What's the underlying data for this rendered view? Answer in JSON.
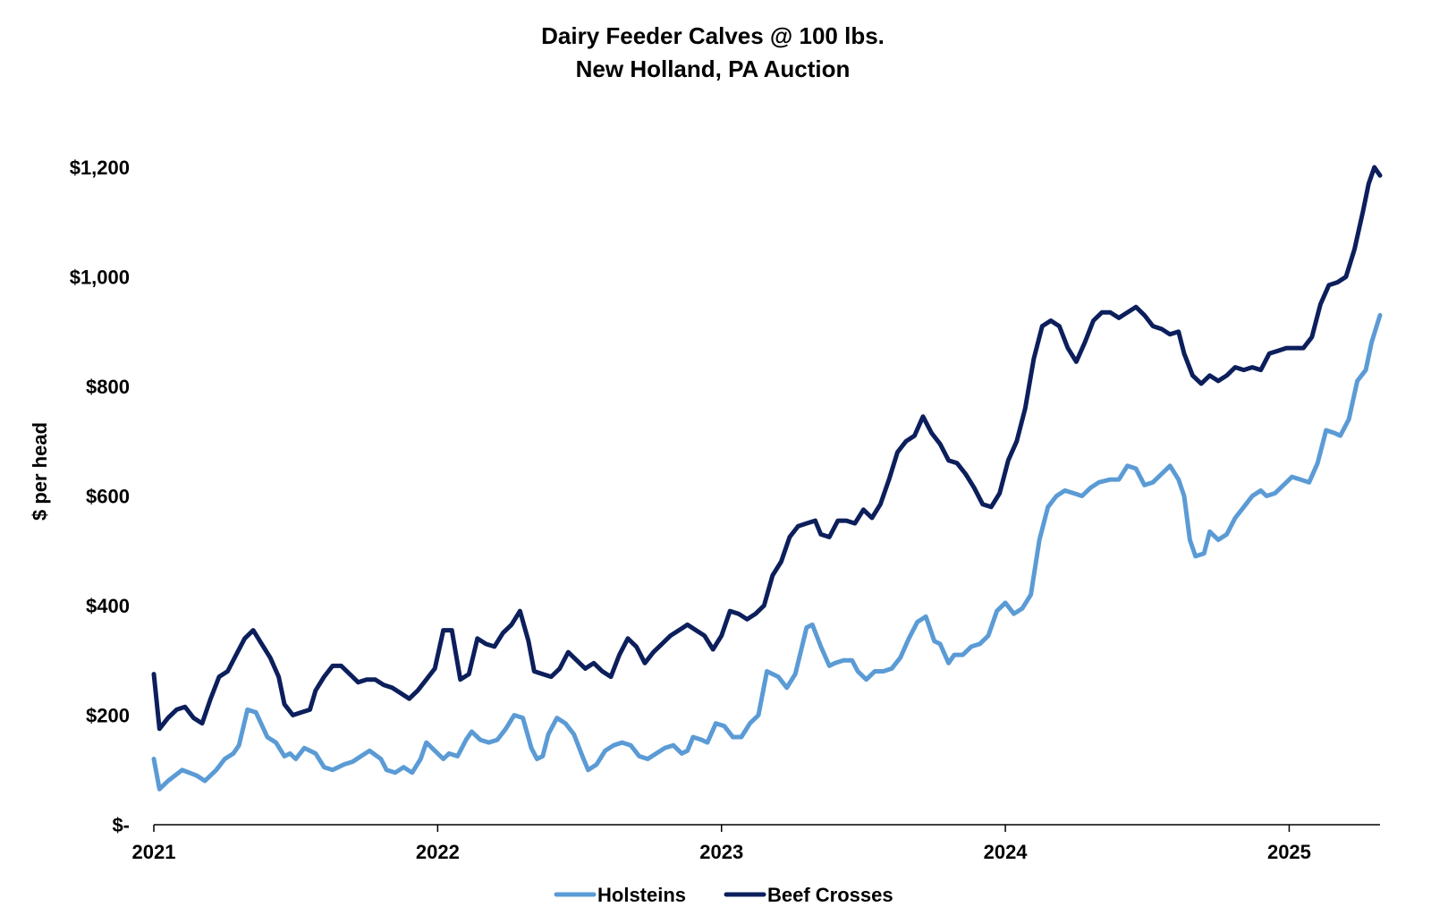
{
  "chart_data": {
    "type": "line",
    "title": "Dairy Feeder Calves @ 100 lbs.",
    "subtitle": "New Holland, PA Auction",
    "xlabel": "",
    "ylabel": "$ per head",
    "xlim": [
      2021.0,
      2025.32
    ],
    "ylim": [
      0,
      1200
    ],
    "y_ticks": [
      0,
      200,
      400,
      600,
      800,
      1000,
      1200
    ],
    "y_tick_labels": [
      "$-",
      "$200",
      "$400",
      "$600",
      "$800",
      "$1,000",
      "$1,200"
    ],
    "x_ticks": [
      2021,
      2022,
      2023,
      2024,
      2025
    ],
    "x_tick_labels": [
      "2021",
      "2022",
      "2023",
      "2024",
      "2025"
    ],
    "grid": false,
    "legend_position": "bottom",
    "series": [
      {
        "name": "Holsteins",
        "color": "#5b9bd5",
        "points": [
          [
            2021.0,
            120
          ],
          [
            2021.02,
            65
          ],
          [
            2021.05,
            80
          ],
          [
            2021.1,
            100
          ],
          [
            2021.15,
            90
          ],
          [
            2021.18,
            80
          ],
          [
            2021.22,
            100
          ],
          [
            2021.25,
            120
          ],
          [
            2021.28,
            130
          ],
          [
            2021.3,
            145
          ],
          [
            2021.33,
            210
          ],
          [
            2021.36,
            205
          ],
          [
            2021.4,
            160
          ],
          [
            2021.43,
            150
          ],
          [
            2021.46,
            125
          ],
          [
            2021.48,
            130
          ],
          [
            2021.5,
            120
          ],
          [
            2021.53,
            140
          ],
          [
            2021.57,
            130
          ],
          [
            2021.6,
            105
          ],
          [
            2021.63,
            100
          ],
          [
            2021.67,
            110
          ],
          [
            2021.7,
            115
          ],
          [
            2021.73,
            125
          ],
          [
            2021.76,
            135
          ],
          [
            2021.8,
            120
          ],
          [
            2021.82,
            100
          ],
          [
            2021.85,
            95
          ],
          [
            2021.88,
            105
          ],
          [
            2021.91,
            95
          ],
          [
            2021.94,
            120
          ],
          [
            2021.96,
            150
          ],
          [
            2021.99,
            135
          ],
          [
            2022.02,
            120
          ],
          [
            2022.04,
            130
          ],
          [
            2022.07,
            125
          ],
          [
            2022.1,
            155
          ],
          [
            2022.12,
            170
          ],
          [
            2022.15,
            155
          ],
          [
            2022.18,
            150
          ],
          [
            2022.21,
            155
          ],
          [
            2022.24,
            175
          ],
          [
            2022.27,
            200
          ],
          [
            2022.3,
            195
          ],
          [
            2022.33,
            140
          ],
          [
            2022.35,
            120
          ],
          [
            2022.37,
            125
          ],
          [
            2022.39,
            165
          ],
          [
            2022.42,
            195
          ],
          [
            2022.45,
            185
          ],
          [
            2022.48,
            165
          ],
          [
            2022.51,
            125
          ],
          [
            2022.53,
            100
          ],
          [
            2022.56,
            110
          ],
          [
            2022.59,
            135
          ],
          [
            2022.62,
            145
          ],
          [
            2022.65,
            150
          ],
          [
            2022.68,
            145
          ],
          [
            2022.71,
            125
          ],
          [
            2022.74,
            120
          ],
          [
            2022.77,
            130
          ],
          [
            2022.8,
            140
          ],
          [
            2022.83,
            145
          ],
          [
            2022.86,
            130
          ],
          [
            2022.88,
            135
          ],
          [
            2022.9,
            160
          ],
          [
            2022.93,
            155
          ],
          [
            2022.95,
            150
          ],
          [
            2022.98,
            185
          ],
          [
            2023.01,
            180
          ],
          [
            2023.04,
            160
          ],
          [
            2023.07,
            160
          ],
          [
            2023.1,
            185
          ],
          [
            2023.13,
            200
          ],
          [
            2023.16,
            280
          ],
          [
            2023.2,
            270
          ],
          [
            2023.23,
            250
          ],
          [
            2023.26,
            275
          ],
          [
            2023.3,
            360
          ],
          [
            2023.32,
            365
          ],
          [
            2023.35,
            325
          ],
          [
            2023.38,
            290
          ],
          [
            2023.4,
            295
          ],
          [
            2023.43,
            300
          ],
          [
            2023.46,
            300
          ],
          [
            2023.48,
            280
          ],
          [
            2023.51,
            265
          ],
          [
            2023.54,
            280
          ],
          [
            2023.57,
            280
          ],
          [
            2023.6,
            285
          ],
          [
            2023.63,
            305
          ],
          [
            2023.66,
            340
          ],
          [
            2023.69,
            370
          ],
          [
            2023.72,
            380
          ],
          [
            2023.75,
            335
          ],
          [
            2023.77,
            330
          ],
          [
            2023.8,
            295
          ],
          [
            2023.82,
            310
          ],
          [
            2023.85,
            310
          ],
          [
            2023.88,
            325
          ],
          [
            2023.91,
            330
          ],
          [
            2023.94,
            345
          ],
          [
            2023.97,
            390
          ],
          [
            2024.0,
            405
          ],
          [
            2024.03,
            385
          ],
          [
            2024.06,
            395
          ],
          [
            2024.09,
            420
          ],
          [
            2024.12,
            520
          ],
          [
            2024.15,
            580
          ],
          [
            2024.18,
            600
          ],
          [
            2024.21,
            610
          ],
          [
            2024.24,
            605
          ],
          [
            2024.27,
            600
          ],
          [
            2024.3,
            615
          ],
          [
            2024.33,
            625
          ],
          [
            2024.37,
            630
          ],
          [
            2024.4,
            630
          ],
          [
            2024.43,
            655
          ],
          [
            2024.46,
            650
          ],
          [
            2024.49,
            620
          ],
          [
            2024.52,
            625
          ],
          [
            2024.55,
            640
          ],
          [
            2024.58,
            655
          ],
          [
            2024.61,
            630
          ],
          [
            2024.63,
            600
          ],
          [
            2024.65,
            520
          ],
          [
            2024.67,
            490
          ],
          [
            2024.7,
            495
          ],
          [
            2024.72,
            535
          ],
          [
            2024.75,
            520
          ],
          [
            2024.78,
            530
          ],
          [
            2024.81,
            560
          ],
          [
            2024.84,
            580
          ],
          [
            2024.87,
            600
          ],
          [
            2024.9,
            610
          ],
          [
            2024.92,
            600
          ],
          [
            2024.95,
            605
          ],
          [
            2024.98,
            620
          ],
          [
            2025.01,
            635
          ],
          [
            2025.04,
            630
          ],
          [
            2025.07,
            625
          ],
          [
            2025.1,
            660
          ],
          [
            2025.13,
            720
          ],
          [
            2025.16,
            715
          ],
          [
            2025.18,
            710
          ],
          [
            2025.21,
            740
          ],
          [
            2025.24,
            810
          ],
          [
            2025.27,
            830
          ],
          [
            2025.29,
            880
          ],
          [
            2025.32,
            930
          ]
        ]
      },
      {
        "name": "Beef Crosses",
        "color": "#0c1f5c",
        "points": [
          [
            2021.0,
            275
          ],
          [
            2021.02,
            175
          ],
          [
            2021.05,
            195
          ],
          [
            2021.08,
            210
          ],
          [
            2021.11,
            215
          ],
          [
            2021.14,
            195
          ],
          [
            2021.17,
            185
          ],
          [
            2021.2,
            230
          ],
          [
            2021.23,
            270
          ],
          [
            2021.26,
            280
          ],
          [
            2021.29,
            310
          ],
          [
            2021.32,
            340
          ],
          [
            2021.35,
            355
          ],
          [
            2021.38,
            330
          ],
          [
            2021.41,
            305
          ],
          [
            2021.44,
            270
          ],
          [
            2021.46,
            220
          ],
          [
            2021.49,
            200
          ],
          [
            2021.52,
            205
          ],
          [
            2021.55,
            210
          ],
          [
            2021.57,
            245
          ],
          [
            2021.6,
            270
          ],
          [
            2021.63,
            290
          ],
          [
            2021.66,
            290
          ],
          [
            2021.69,
            275
          ],
          [
            2021.72,
            260
          ],
          [
            2021.75,
            265
          ],
          [
            2021.78,
            265
          ],
          [
            2021.81,
            255
          ],
          [
            2021.84,
            250
          ],
          [
            2021.87,
            240
          ],
          [
            2021.9,
            230
          ],
          [
            2021.93,
            245
          ],
          [
            2021.96,
            265
          ],
          [
            2021.99,
            285
          ],
          [
            2022.02,
            355
          ],
          [
            2022.05,
            355
          ],
          [
            2022.08,
            265
          ],
          [
            2022.11,
            275
          ],
          [
            2022.14,
            340
          ],
          [
            2022.17,
            330
          ],
          [
            2022.2,
            325
          ],
          [
            2022.23,
            350
          ],
          [
            2022.26,
            365
          ],
          [
            2022.29,
            390
          ],
          [
            2022.32,
            335
          ],
          [
            2022.34,
            280
          ],
          [
            2022.37,
            275
          ],
          [
            2022.4,
            270
          ],
          [
            2022.43,
            285
          ],
          [
            2022.46,
            315
          ],
          [
            2022.49,
            300
          ],
          [
            2022.52,
            285
          ],
          [
            2022.55,
            295
          ],
          [
            2022.58,
            280
          ],
          [
            2022.61,
            270
          ],
          [
            2022.64,
            310
          ],
          [
            2022.67,
            340
          ],
          [
            2022.7,
            325
          ],
          [
            2022.73,
            295
          ],
          [
            2022.76,
            315
          ],
          [
            2022.79,
            330
          ],
          [
            2022.82,
            345
          ],
          [
            2022.85,
            355
          ],
          [
            2022.88,
            365
          ],
          [
            2022.91,
            355
          ],
          [
            2022.94,
            345
          ],
          [
            2022.97,
            320
          ],
          [
            2023.0,
            345
          ],
          [
            2023.03,
            390
          ],
          [
            2023.06,
            385
          ],
          [
            2023.09,
            375
          ],
          [
            2023.12,
            385
          ],
          [
            2023.15,
            400
          ],
          [
            2023.18,
            455
          ],
          [
            2023.21,
            480
          ],
          [
            2023.24,
            525
          ],
          [
            2023.27,
            545
          ],
          [
            2023.3,
            550
          ],
          [
            2023.33,
            555
          ],
          [
            2023.35,
            530
          ],
          [
            2023.38,
            525
          ],
          [
            2023.41,
            555
          ],
          [
            2023.44,
            555
          ],
          [
            2023.47,
            550
          ],
          [
            2023.5,
            575
          ],
          [
            2023.53,
            560
          ],
          [
            2023.56,
            585
          ],
          [
            2023.59,
            630
          ],
          [
            2023.62,
            680
          ],
          [
            2023.65,
            700
          ],
          [
            2023.68,
            710
          ],
          [
            2023.71,
            745
          ],
          [
            2023.74,
            715
          ],
          [
            2023.77,
            695
          ],
          [
            2023.8,
            665
          ],
          [
            2023.83,
            660
          ],
          [
            2023.86,
            640
          ],
          [
            2023.89,
            615
          ],
          [
            2023.92,
            585
          ],
          [
            2023.95,
            580
          ],
          [
            2023.98,
            605
          ],
          [
            2024.01,
            665
          ],
          [
            2024.04,
            700
          ],
          [
            2024.07,
            760
          ],
          [
            2024.1,
            850
          ],
          [
            2024.13,
            910
          ],
          [
            2024.16,
            920
          ],
          [
            2024.19,
            910
          ],
          [
            2024.22,
            870
          ],
          [
            2024.25,
            845
          ],
          [
            2024.28,
            880
          ],
          [
            2024.31,
            920
          ],
          [
            2024.34,
            935
          ],
          [
            2024.37,
            935
          ],
          [
            2024.4,
            925
          ],
          [
            2024.43,
            935
          ],
          [
            2024.46,
            945
          ],
          [
            2024.49,
            930
          ],
          [
            2024.52,
            910
          ],
          [
            2024.55,
            905
          ],
          [
            2024.58,
            895
          ],
          [
            2024.61,
            900
          ],
          [
            2024.63,
            860
          ],
          [
            2024.66,
            820
          ],
          [
            2024.69,
            805
          ],
          [
            2024.72,
            820
          ],
          [
            2024.75,
            810
          ],
          [
            2024.78,
            820
          ],
          [
            2024.81,
            835
          ],
          [
            2024.84,
            830
          ],
          [
            2024.87,
            835
          ],
          [
            2024.9,
            830
          ],
          [
            2024.93,
            860
          ],
          [
            2024.96,
            865
          ],
          [
            2024.99,
            870
          ],
          [
            2025.02,
            870
          ],
          [
            2025.05,
            870
          ],
          [
            2025.08,
            890
          ],
          [
            2025.11,
            950
          ],
          [
            2025.14,
            985
          ],
          [
            2025.17,
            990
          ],
          [
            2025.2,
            1000
          ],
          [
            2025.23,
            1050
          ],
          [
            2025.26,
            1120
          ],
          [
            2025.28,
            1170
          ],
          [
            2025.3,
            1200
          ],
          [
            2025.32,
            1185
          ]
        ]
      }
    ]
  }
}
